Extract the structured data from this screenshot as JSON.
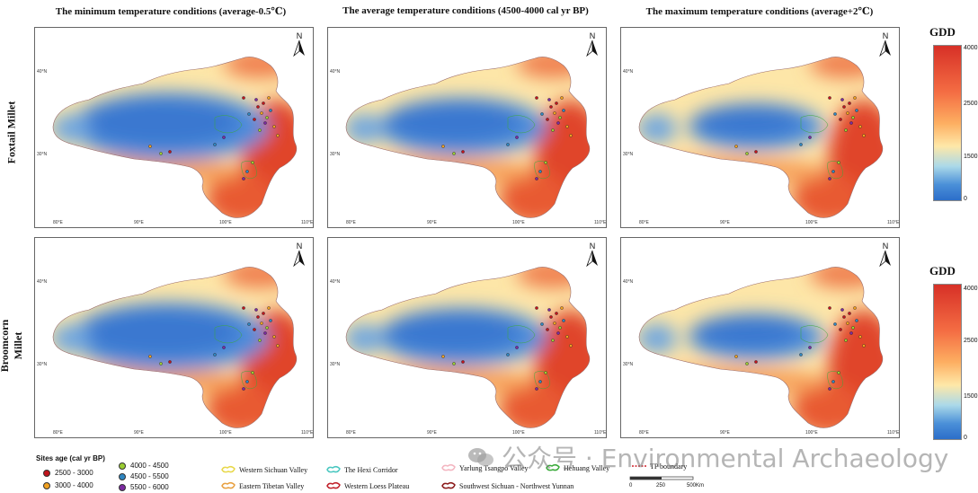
{
  "columns": [
    "The minimum temperature conditions (average-0.5℃)",
    "The average temperature conditions (4500-4000 cal yr BP)",
    "The maximum temperature conditions (average+2℃)"
  ],
  "rows": [
    "Foxtail Millet",
    "Broomcorn Millet"
  ],
  "axis_ticks": {
    "lon": [
      "80°E",
      "90°E",
      "100°E",
      "110°E"
    ],
    "lat": [
      "40°N",
      "30°N"
    ]
  },
  "north_label": "N",
  "colorbars": [
    {
      "title": "GDD",
      "labels": [
        "4000",
        "2500",
        "1500",
        "0"
      ]
    },
    {
      "title": "GDD",
      "labels": [
        "4000",
        "2500",
        "1500",
        "0"
      ]
    }
  ],
  "legend": {
    "sites_title": "Sites age (cal yr BP)",
    "ages": [
      {
        "label": "2500 - 3000",
        "color": "#c0141c"
      },
      {
        "label": "3000 - 4000",
        "color": "#f0a020"
      },
      {
        "label": "4000 - 4500",
        "color": "#9acd32"
      },
      {
        "label": "4500 - 5500",
        "color": "#2e86c1"
      },
      {
        "label": "5500 - 6000",
        "color": "#7b2aa0"
      }
    ],
    "regions": [
      {
        "label": "Western Sichuan Valley",
        "color": "#e8d84a"
      },
      {
        "label": "Eastern Tibetan Valley",
        "color": "#e8a040"
      },
      {
        "label": "The Hexi Corridor",
        "color": "#49c7c0"
      },
      {
        "label": "Western Loess Plateau",
        "color": "#c0202a"
      },
      {
        "label": "Yarlung Tsangpo Valley",
        "color": "#f3b5c0"
      },
      {
        "label": "Southwest Sichuan - Northwest Yunnan",
        "color": "#8b1a1a"
      },
      {
        "label": "Hehuang Valley",
        "color": "#3aaa3a"
      },
      {
        "label": "TP boundary",
        "color": "#d0202a"
      }
    ]
  },
  "scalebar": {
    "labels": [
      "0",
      "250",
      "500"
    ],
    "unit": "Km"
  },
  "watermark": "公众号 · Environmental Archaeology"
}
